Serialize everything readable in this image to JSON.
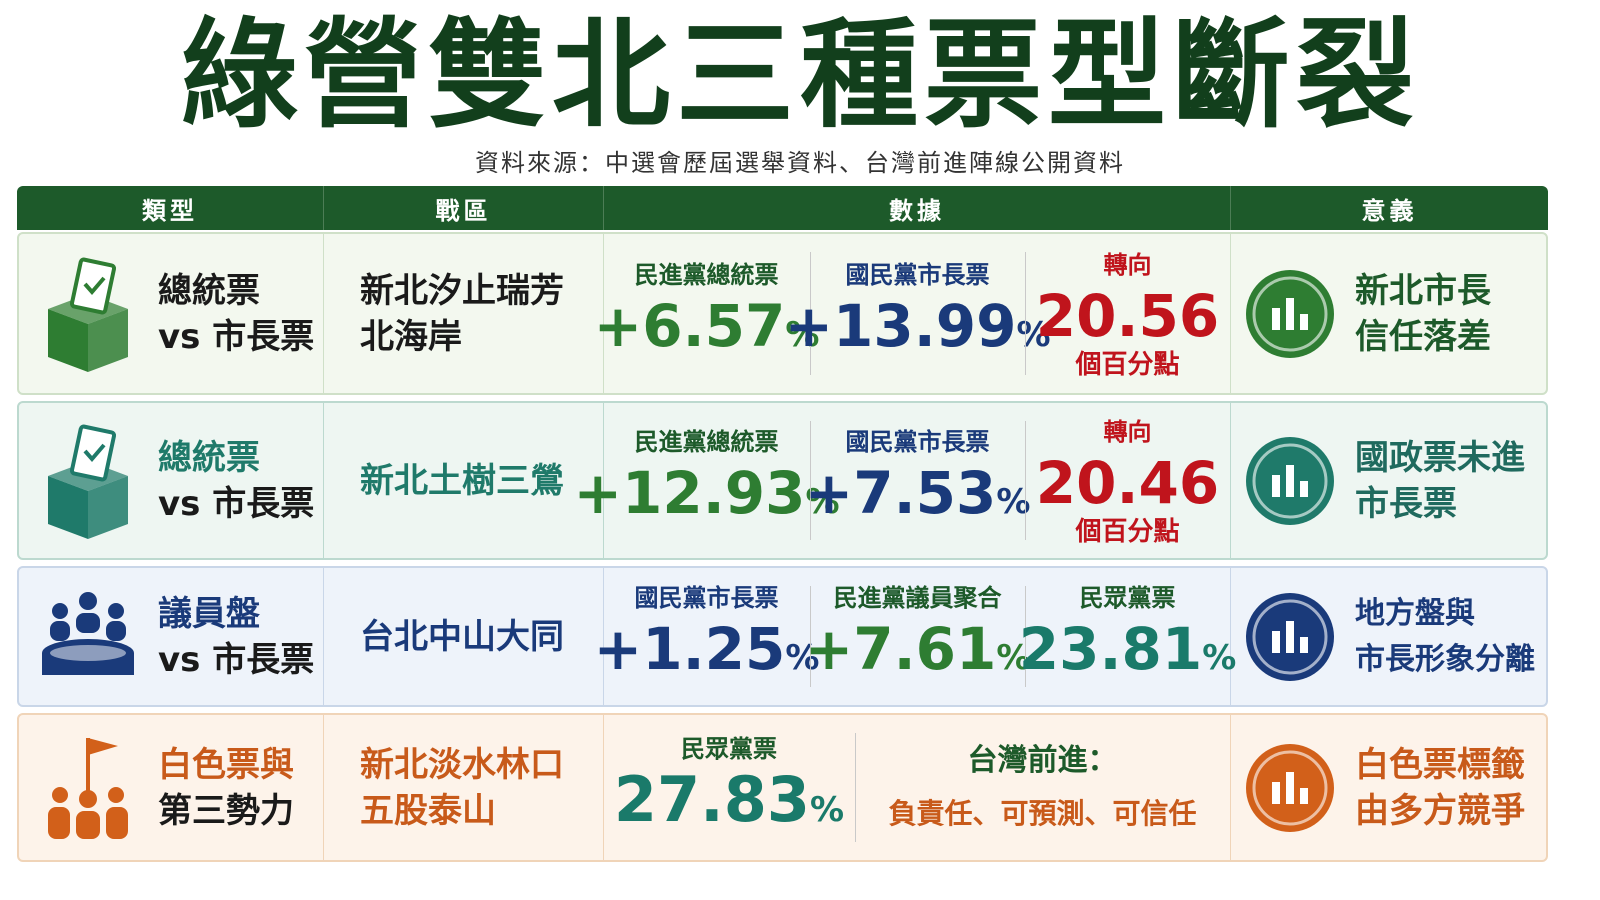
{
  "header": {
    "title": "綠營雙北三種票型斷裂",
    "source": "資料來源：中選會歷屆選舉資料、台灣前進陣線公開資料"
  },
  "table": {
    "columns": [
      "類型",
      "戰區",
      "數據",
      "意義"
    ],
    "rows": [
      {
        "type": [
          "總統票",
          "vs 市長票"
        ],
        "district": [
          "新北汐止瑞芳",
          "北海岸"
        ],
        "data": [
          {
            "label": "民進黨總統票",
            "value": "+6.57",
            "unit": "%",
            "color": "#2e7d32"
          },
          {
            "label": "國民黨市長票",
            "value": "+13.99",
            "unit": "%",
            "color": "#1a3a7a"
          },
          {
            "label": "轉向",
            "value": "20.56",
            "note": "個百分點",
            "color": "#c0141c"
          }
        ],
        "meaning": [
          "新北市長",
          "信任落差"
        ]
      },
      {
        "type": [
          "總統票",
          "vs 市長票"
        ],
        "district": [
          "新北土樹三鶯"
        ],
        "data": [
          {
            "label": "民進黨總統票",
            "value": "+12.93",
            "unit": "%",
            "color": "#2e7d32"
          },
          {
            "label": "國民黨市長票",
            "value": "+7.53",
            "unit": "%",
            "color": "#1a3a7a"
          },
          {
            "label": "轉向",
            "value": "20.46",
            "note": "個百分點",
            "color": "#c0141c"
          }
        ],
        "meaning": [
          "國政票未進",
          "市長票"
        ]
      },
      {
        "type": [
          "議員盤",
          "vs 市長票"
        ],
        "district": [
          "台北中山大同"
        ],
        "data": [
          {
            "label": "國民黨市長票",
            "value": "+1.25",
            "unit": "%",
            "color": "#1a3a7a"
          },
          {
            "label": "民進黨議員聚合",
            "value": "+7.61",
            "unit": "%",
            "color": "#2e7d32"
          },
          {
            "label": "民眾黨票",
            "value": "23.81",
            "unit": "%",
            "color": "#1a7a6a"
          }
        ],
        "meaning": [
          "地方盤與",
          "市長形象分離"
        ]
      },
      {
        "type": [
          "白色票與",
          "第三勢力"
        ],
        "district": [
          "新北淡水林口",
          "五股泰山"
        ],
        "data": [
          {
            "label": "民眾黨票",
            "value": "27.83",
            "unit": "%",
            "color": "#1a7a6a"
          },
          {
            "label": "台灣前進：",
            "text": "負責任、可預測、可信任",
            "color": "#c85a1a"
          }
        ],
        "meaning": [
          "白色票標籤",
          "由多方競爭"
        ]
      }
    ]
  }
}
